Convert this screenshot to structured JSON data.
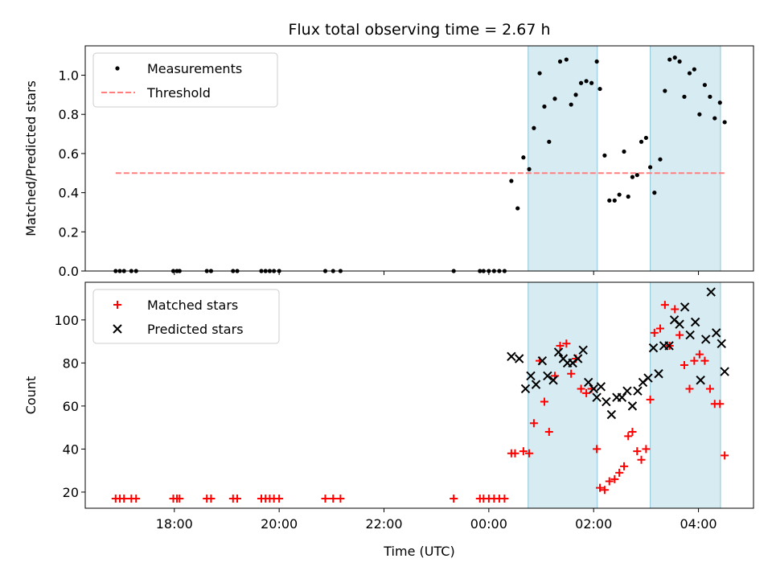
{
  "chart_data": [
    {
      "type": "scatter",
      "title": "Flux total observing time = 2.67 h",
      "xlabel": "",
      "ylabel": "Matched/Predicted stars",
      "ylim": [
        0,
        1.15
      ],
      "yticks": [
        0.0,
        0.2,
        0.4,
        0.6,
        0.8,
        1.0
      ],
      "ytick_labels": [
        "0.0",
        "0.2",
        "0.4",
        "0.6",
        "0.8",
        "1.0"
      ],
      "xlim": [
        16.3,
        29.05
      ],
      "grid": false,
      "legend": "top-left",
      "shaded_spans": [
        [
          24.75,
          26.07
        ],
        [
          27.08,
          28.42
        ]
      ],
      "threshold": {
        "name": "Threshold",
        "value": 0.5,
        "x_range": [
          16.88,
          28.5
        ],
        "color": "#ff7f7f"
      },
      "series": [
        {
          "name": "Measurements",
          "color": "#000000",
          "x": [
            16.88,
            16.96,
            17.04,
            17.18,
            17.27,
            17.98,
            18.05,
            18.1,
            18.62,
            18.7,
            19.12,
            19.2,
            19.66,
            19.74,
            19.82,
            19.9,
            20.0,
            20.88,
            21.03,
            21.17,
            23.33,
            23.83,
            23.9,
            24.0,
            24.1,
            24.2,
            24.3,
            24.43,
            24.55,
            24.66,
            24.77,
            24.86,
            24.97,
            25.06,
            25.15,
            25.26,
            25.36,
            25.48,
            25.57,
            25.66,
            25.76,
            25.86,
            25.96,
            26.06,
            26.12,
            26.21,
            26.3,
            26.4,
            26.49,
            26.58,
            26.66,
            26.74,
            26.83,
            26.91,
            27.0,
            27.08,
            27.16,
            27.27,
            27.36,
            27.45,
            27.55,
            27.64,
            27.73,
            27.83,
            27.92,
            28.02,
            28.12,
            28.22,
            28.31,
            28.41,
            28.5
          ],
          "y": [
            0,
            0,
            0,
            0,
            0,
            0,
            0,
            0,
            0,
            0,
            0,
            0,
            0,
            0,
            0,
            0,
            0,
            0,
            0,
            0,
            0,
            0,
            0,
            0,
            0,
            0,
            0,
            0.46,
            0.32,
            0.58,
            0.52,
            0.73,
            1.01,
            0.84,
            0.66,
            0.88,
            1.07,
            1.08,
            0.85,
            0.9,
            0.96,
            0.97,
            0.96,
            1.07,
            0.93,
            0.59,
            0.36,
            0.36,
            0.39,
            0.61,
            0.38,
            0.48,
            0.49,
            0.66,
            0.68,
            0.53,
            0.4,
            0.57,
            0.92,
            1.08,
            1.09,
            1.07,
            0.89,
            1.01,
            1.03,
            0.8,
            0.95,
            0.89,
            0.78,
            0.86,
            0.76
          ]
        }
      ]
    },
    {
      "type": "scatter",
      "title": "",
      "xlabel": "Time (UTC)",
      "ylabel": "Count",
      "ylim": [
        12.5,
        117.5
      ],
      "yticks": [
        20,
        40,
        60,
        80,
        100
      ],
      "ytick_labels": [
        "20",
        "40",
        "60",
        "80",
        "100"
      ],
      "xlim": [
        16.3,
        29.05
      ],
      "xticks": [
        18,
        20,
        22,
        24,
        26,
        28
      ],
      "xtick_labels": [
        "18:00",
        "20:00",
        "22:00",
        "00:00",
        "02:00",
        "04:00"
      ],
      "grid": false,
      "legend": "top-left",
      "shaded_spans": [
        [
          24.75,
          26.07
        ],
        [
          27.08,
          28.42
        ]
      ],
      "series": [
        {
          "name": "Matched stars",
          "marker": "+",
          "color": "#ff0000",
          "x": [
            16.88,
            16.96,
            17.04,
            17.18,
            17.27,
            17.98,
            18.05,
            18.1,
            18.62,
            18.7,
            19.12,
            19.2,
            19.66,
            19.74,
            19.82,
            19.9,
            20.0,
            20.88,
            21.03,
            21.17,
            23.33,
            23.83,
            23.9,
            24.0,
            24.1,
            24.2,
            24.3,
            24.43,
            24.5,
            24.66,
            24.77,
            24.86,
            24.97,
            25.06,
            25.15,
            25.26,
            25.36,
            25.48,
            25.57,
            25.66,
            25.76,
            25.86,
            25.96,
            26.06,
            26.12,
            26.21,
            26.3,
            26.4,
            26.49,
            26.58,
            26.66,
            26.74,
            26.83,
            26.91,
            27.0,
            27.08,
            27.16,
            27.27,
            27.36,
            27.45,
            27.55,
            27.64,
            27.73,
            27.83,
            27.92,
            28.02,
            28.12,
            28.22,
            28.31,
            28.41,
            28.5
          ],
          "y": [
            17,
            17,
            17,
            17,
            17,
            17,
            17,
            17,
            17,
            17,
            17,
            17,
            17,
            17,
            17,
            17,
            17,
            17,
            17,
            17,
            17,
            17,
            17,
            17,
            17,
            17,
            17,
            38,
            38,
            39,
            38,
            52,
            81,
            62,
            48,
            74,
            88,
            89,
            75,
            82,
            68,
            66,
            68,
            40,
            22,
            21,
            25,
            26,
            29,
            32,
            46,
            48,
            39,
            35,
            40,
            63,
            94,
            96,
            107,
            88,
            105,
            93,
            79,
            68,
            81,
            84,
            81,
            68,
            61,
            61,
            37
          ]
        },
        {
          "name": "Predicted stars",
          "marker": "x",
          "color": "#000000",
          "x": [
            24.43,
            24.58,
            24.7,
            24.8,
            24.9,
            25.02,
            25.12,
            25.23,
            25.33,
            25.42,
            25.5,
            25.6,
            25.7,
            25.8,
            25.9,
            26.0,
            26.06,
            26.14,
            26.24,
            26.34,
            26.44,
            26.54,
            26.64,
            26.74,
            26.84,
            26.94,
            27.04,
            27.14,
            27.24,
            27.34,
            27.44,
            27.54,
            27.64,
            27.74,
            27.84,
            27.94,
            28.04,
            28.14,
            28.24,
            28.34,
            28.44,
            28.5
          ],
          "y": [
            83,
            82,
            68,
            74,
            70,
            81,
            74,
            72,
            85,
            82,
            80,
            80,
            82,
            86,
            71,
            68,
            64,
            69,
            62,
            56,
            64,
            64,
            67,
            60,
            67,
            71,
            73,
            87,
            75,
            88,
            88,
            100,
            98,
            106,
            93,
            99,
            72,
            91,
            113,
            94,
            89,
            76
          ]
        }
      ]
    }
  ]
}
